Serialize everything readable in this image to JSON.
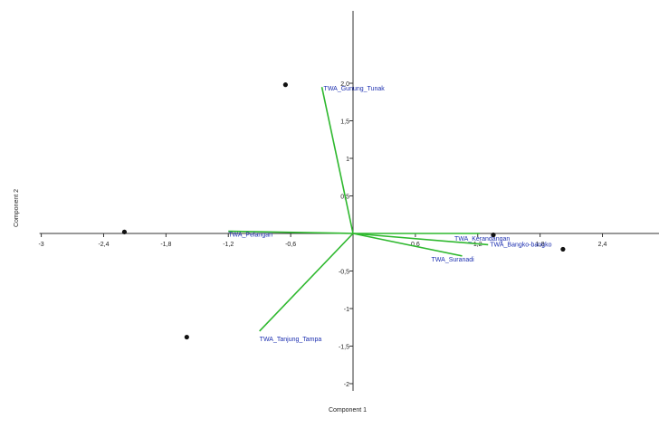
{
  "chart_data": {
    "type": "scatter",
    "xlabel": "Component 1",
    "ylabel": "Component 2",
    "xlim": [
      -3,
      3
    ],
    "ylim": [
      -2.1,
      2.4
    ],
    "x_ticks": [
      -3,
      -2.4,
      -1.8,
      -1.2,
      -0.6,
      0.6,
      1.2,
      1.8,
      2.4
    ],
    "x_tick_labels": [
      "-3",
      "-2,4",
      "-1,8",
      "-1,2",
      "-0,6",
      "0,6",
      "1,2",
      "1,8",
      "2,4"
    ],
    "y_ticks": [
      2,
      1.5,
      1,
      0.5,
      -0.5,
      -1,
      -1.5,
      -2
    ],
    "y_tick_labels": [
      "2,0",
      "1,5",
      "1",
      "0,5",
      "-0,5",
      "-1",
      "-1,5",
      "-2"
    ],
    "grid": false,
    "points": [
      {
        "x": -0.65,
        "y": 1.98
      },
      {
        "x": -2.2,
        "y": 0.02
      },
      {
        "x": -1.6,
        "y": -1.38
      },
      {
        "x": 1.35,
        "y": -0.02
      },
      {
        "x": 2.02,
        "y": -0.21
      }
    ],
    "vectors": [
      {
        "label": "TWA_Gunung_Tunak",
        "x": -0.3,
        "y": 1.95
      },
      {
        "label": "TWA_Pelangan",
        "x": -1.2,
        "y": 0.03
      },
      {
        "label": "TWA_Tanjung_Tampa",
        "x": -0.9,
        "y": -1.3
      },
      {
        "label": "TWA_Bangko-bangko",
        "x": 1.3,
        "y": -0.15
      },
      {
        "label": "TWA_Suranadi",
        "x": 1.05,
        "y": -0.3
      },
      {
        "label": "TWA_Kerandangan",
        "x": 1.22,
        "y": 0.0
      }
    ],
    "colors": {
      "vector": "#2eb82e",
      "label": "#1c2fb0",
      "point": "#111111",
      "axis": "#333333"
    }
  }
}
